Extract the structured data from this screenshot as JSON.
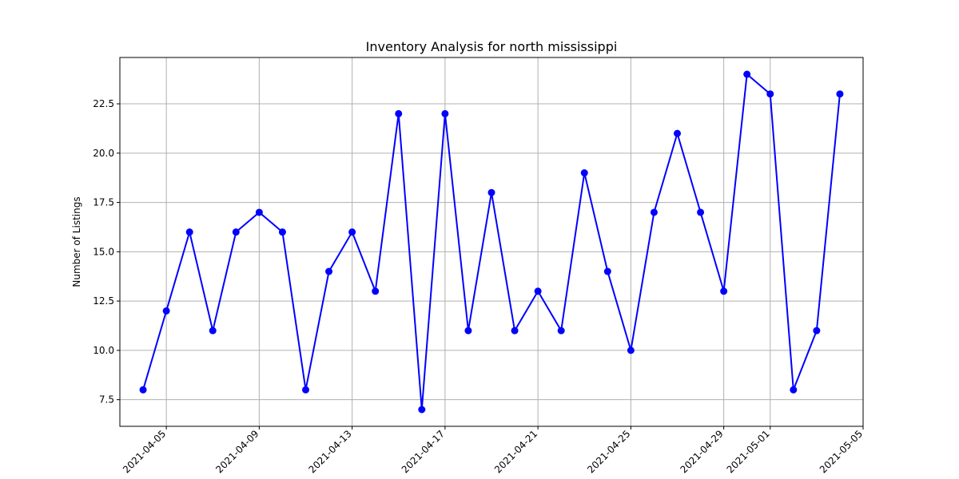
{
  "chart_data": {
    "type": "line",
    "title": "Inventory Analysis for north mississippi",
    "xlabel": "",
    "ylabel": "Number of Listings",
    "x": [
      "2021-04-04",
      "2021-04-05",
      "2021-04-06",
      "2021-04-07",
      "2021-04-08",
      "2021-04-09",
      "2021-04-10",
      "2021-04-11",
      "2021-04-12",
      "2021-04-13",
      "2021-04-14",
      "2021-04-15",
      "2021-04-16",
      "2021-04-17",
      "2021-04-18",
      "2021-04-19",
      "2021-04-20",
      "2021-04-21",
      "2021-04-22",
      "2021-04-23",
      "2021-04-24",
      "2021-04-25",
      "2021-04-26",
      "2021-04-27",
      "2021-04-28",
      "2021-04-29",
      "2021-04-30",
      "2021-05-01",
      "2021-05-02",
      "2021-05-03",
      "2021-05-04"
    ],
    "values": [
      8,
      12,
      16,
      11,
      16,
      17,
      16,
      8,
      14,
      16,
      13,
      22,
      7,
      22,
      11,
      18,
      11,
      13,
      11,
      19,
      14,
      10,
      17,
      21,
      17,
      13,
      24,
      23,
      8,
      11,
      23
    ],
    "xlim": [
      "2021-04-03",
      "2021-05-05"
    ],
    "ylim": [
      6.15,
      24.85
    ],
    "x_ticks": [
      "2021-04-05",
      "2021-04-09",
      "2021-04-13",
      "2021-04-17",
      "2021-04-21",
      "2021-04-25",
      "2021-04-29",
      "2021-05-01",
      "2021-05-05"
    ],
    "y_ticks": [
      7.5,
      10.0,
      12.5,
      15.0,
      17.5,
      20.0,
      22.5
    ],
    "y_tick_labels": [
      "7.5",
      "10.0",
      "12.5",
      "15.0",
      "17.5",
      "20.0",
      "22.5"
    ],
    "grid": true,
    "line_color": "#0000ff",
    "marker": "circle"
  }
}
